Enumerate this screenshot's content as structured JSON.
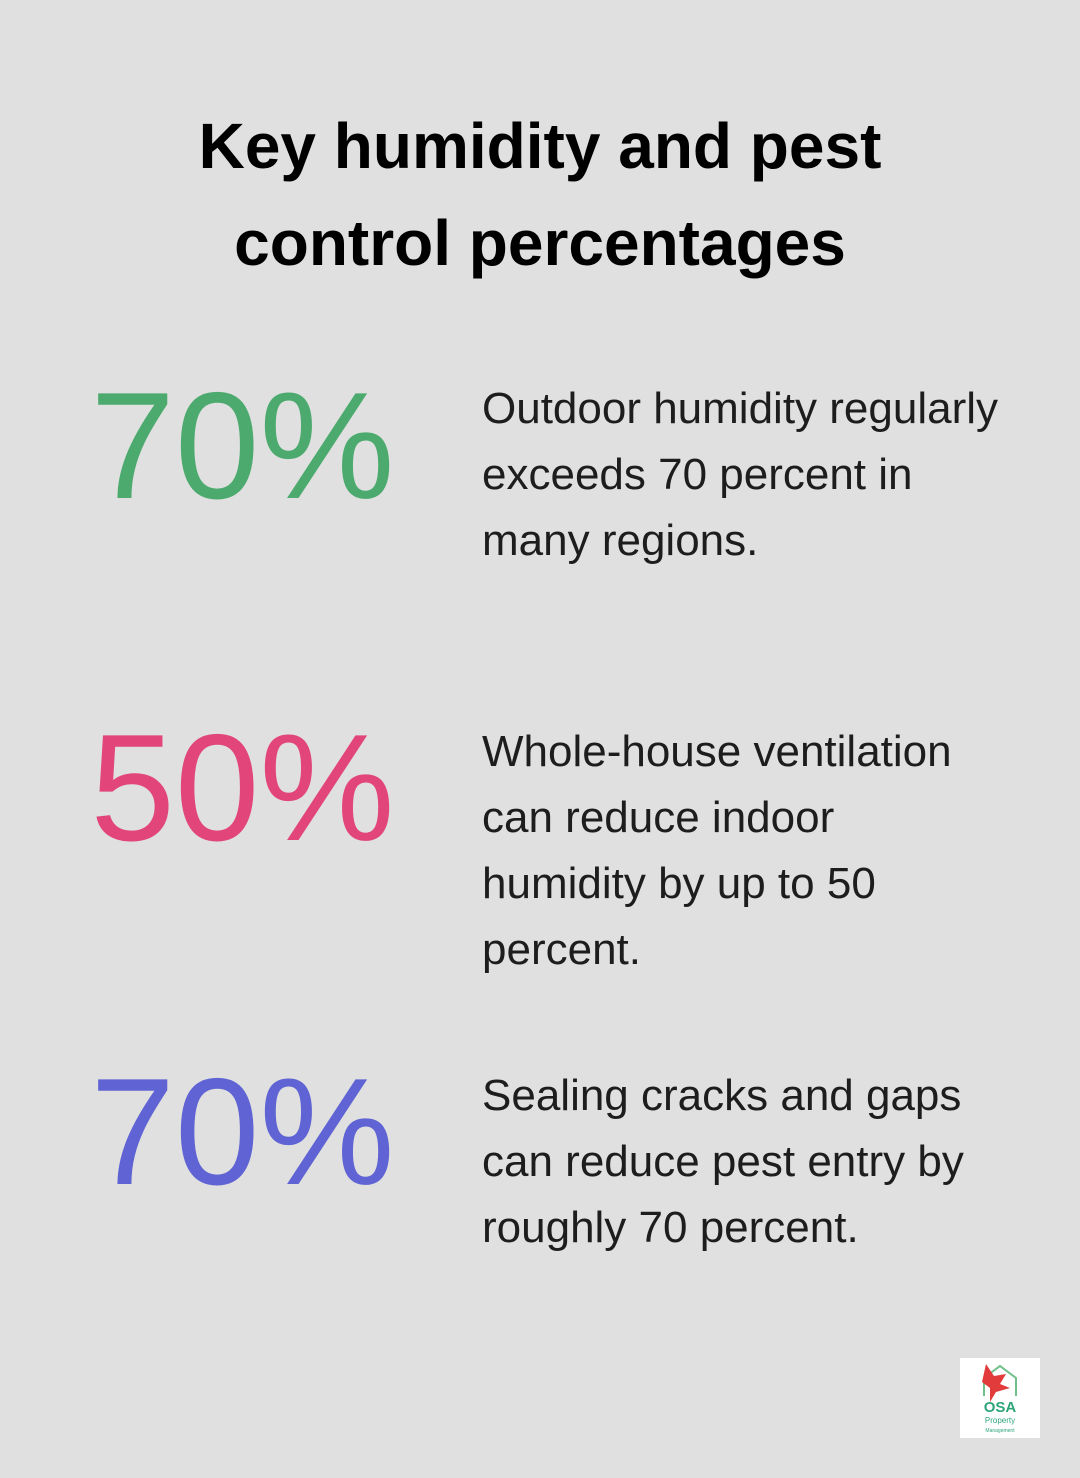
{
  "header": {
    "title": "Key humidity and pest control percentages"
  },
  "stats": [
    {
      "value": "70%",
      "text": "Outdoor humidity regularly exceeds 70 percent in many regions."
    },
    {
      "value": "50%",
      "text": "Whole-house ventilation can reduce indoor humidity by up to 50 percent."
    },
    {
      "value": "70%",
      "text": "Sealing cracks and gaps can reduce pest entry by roughly 70 percent."
    }
  ],
  "logo": {
    "name": "OSA",
    "line1": "Property",
    "line2": "Management"
  }
}
